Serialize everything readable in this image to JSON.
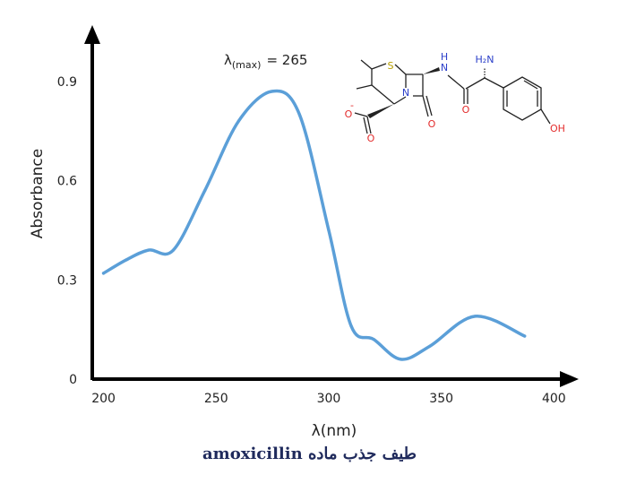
{
  "chart_data": {
    "type": "line",
    "x": [
      200,
      210,
      220,
      231,
      245,
      260,
      275,
      287,
      300,
      310,
      320,
      332,
      345,
      365,
      387
    ],
    "series": [
      {
        "values": [
          0.32,
          0.36,
          0.39,
          0.39,
          0.57,
          0.78,
          0.87,
          0.8,
          0.45,
          0.16,
          0.12,
          0.06,
          0.1,
          0.19,
          0.13
        ]
      }
    ],
    "xlabel": "λ(nm)",
    "ylabel": "Absorbance",
    "xticks": [
      "200",
      "250",
      "300",
      "350",
      "400"
    ],
    "yticks": [
      "0",
      "0.3",
      "0.6",
      "0.9"
    ],
    "xlim": [
      195,
      411
    ],
    "ylim": [
      0,
      1.07
    ],
    "grid": false,
    "line_color": "#5b9fd8",
    "annotation": {
      "lambda": "λ",
      "subscript": "(max)",
      "value": "= 265"
    },
    "title": "طیف جذب ماده amoxicillin"
  },
  "molecule": {
    "atoms": {
      "s": "S",
      "n_ring": "N",
      "nh_h": "H",
      "nh_n": "N",
      "o_neg": "O",
      "charge": "-",
      "o_carboxyl": "O",
      "o_lactam": "O",
      "o_amide": "O",
      "nh2": "H₂N",
      "oh": "OH"
    },
    "colors": {
      "sulfur": "#b8a000",
      "nitrogen": "#2b3fc9",
      "oxygen": "#e32b2b",
      "bond": "#222222"
    }
  }
}
